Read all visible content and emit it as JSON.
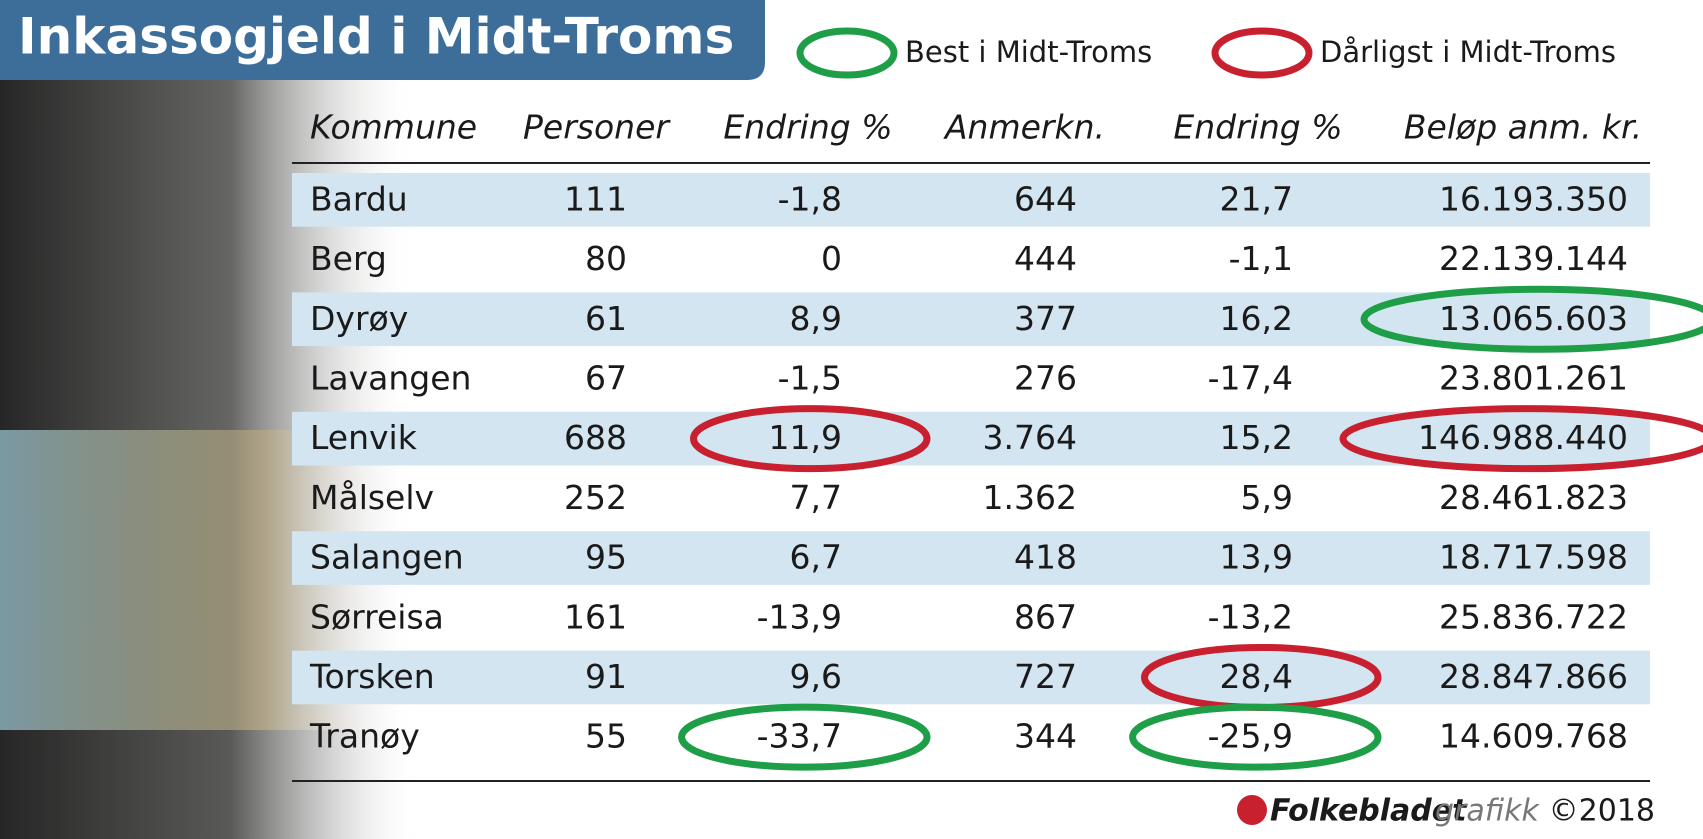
{
  "header": {
    "title": "Inkassogjeld i Midt-Troms"
  },
  "legend": [
    {
      "label": "Best i Midt-Troms",
      "color": "#1f9e48"
    },
    {
      "label": "Dårligst i Midt-Troms",
      "color": "#c8202f"
    }
  ],
  "table": {
    "columns": [
      "Kommune",
      "Personer",
      "Endring %",
      "Anmerkn.",
      "Endring %",
      "Beløp anm. kr."
    ],
    "rows": [
      [
        "Bardu",
        "111",
        "-1,8",
        "644",
        "21,7",
        "16.193.350"
      ],
      [
        "Berg",
        "80",
        "0",
        "444",
        "-1,1",
        "22.139.144"
      ],
      [
        "Dyrøy",
        "61",
        "8,9",
        "377",
        "16,2",
        "13.065.603"
      ],
      [
        "Lavangen",
        "67",
        "-1,5",
        "276",
        "-17,4",
        "23.801.261"
      ],
      [
        "Lenvik",
        "688",
        "11,9",
        "3.764",
        "15,2",
        "146.988.440"
      ],
      [
        "Målselv",
        "252",
        "7,7",
        "1.362",
        "5,9",
        "28.461.823"
      ],
      [
        "Salangen",
        "95",
        "6,7",
        "418",
        "13,9",
        "18.717.598"
      ],
      [
        "Sørreisa",
        "161",
        "-13,9",
        "867",
        "-13,2",
        "25.836.722"
      ],
      [
        "Torsken",
        "91",
        "9,6",
        "727",
        "28,4",
        "28.847.866"
      ],
      [
        "Tranøy",
        "55",
        "-33,7",
        "344",
        "-25,9",
        "14.609.768"
      ]
    ],
    "circles": [
      {
        "row": 2,
        "column": 5,
        "legend": 0
      },
      {
        "row": 4,
        "column": 2,
        "legend": 1
      },
      {
        "row": 4,
        "column": 5,
        "legend": 1
      },
      {
        "row": 8,
        "column": 4,
        "legend": 1
      },
      {
        "row": 9,
        "column": 2,
        "legend": 0
      },
      {
        "row": 9,
        "column": 4,
        "legend": 0
      }
    ]
  },
  "footer": {
    "brand": "Folkebladet",
    "suffix": "grafikk",
    "copyright": "©2018"
  }
}
